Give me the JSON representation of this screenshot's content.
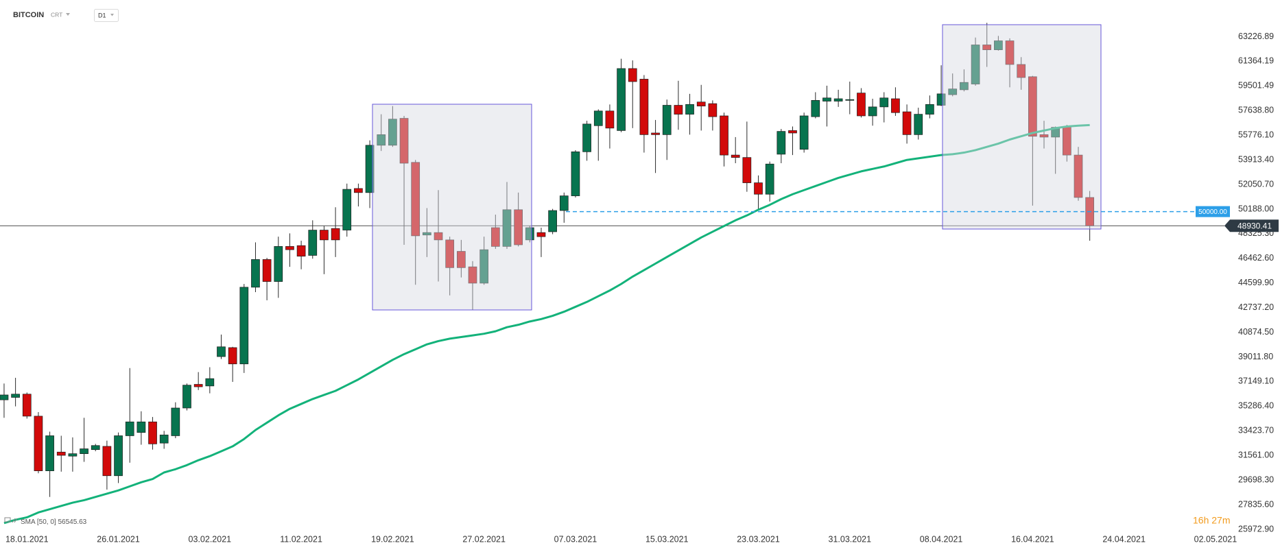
{
  "chart_data": {
    "type": "candlestick",
    "symbol": "BITCOIN",
    "instrument_type": "CRT",
    "interval": "D1",
    "categories": [
      null,
      null,
      "18.01.2021",
      null,
      null,
      null,
      null,
      null,
      null,
      null,
      "26.01.2021",
      null,
      null,
      null,
      null,
      null,
      null,
      null,
      "03.02.2021",
      null,
      null,
      null,
      null,
      null,
      null,
      null,
      "11.02.2021",
      null,
      null,
      null,
      null,
      null,
      null,
      null,
      "19.02.2021",
      null,
      null,
      null,
      null,
      null,
      null,
      null,
      "27.02.2021",
      null,
      null,
      null,
      null,
      null,
      null,
      null,
      "07.03.2021",
      null,
      null,
      null,
      null,
      null,
      null,
      null,
      "15.03.2021",
      null,
      null,
      null,
      null,
      null,
      null,
      null,
      "23.03.2021",
      null,
      null,
      null,
      null,
      null,
      null,
      null,
      "31.03.2021",
      null,
      null,
      null,
      null,
      null,
      null,
      null,
      "08.04.2021",
      null,
      null,
      null,
      null,
      null,
      null,
      null,
      "16.04.2021",
      null,
      null,
      null,
      null,
      null,
      null,
      null,
      "24.04.2021",
      null,
      null,
      null,
      null,
      null,
      null,
      null,
      "02.05.2021"
    ],
    "open": [
      35767,
      35952,
      36199,
      34533,
      30399,
      31818,
      31510,
      31695,
      32003,
      32250,
      30029,
      33052,
      33299,
      34101,
      32497,
      33052,
      35150,
      36939,
      36816,
      39037,
      39716,
      38482,
      44282,
      46379,
      44713,
      47367,
      47428,
      46688,
      48601,
      48724,
      48601,
      51747,
      51439,
      55017,
      55017,
      57053,
      53722,
      48230,
      48415,
      47860,
      46996,
      45824,
      44590,
      48786,
      47367,
      50143,
      47860,
      48415,
      48477,
      50081,
      51192,
      54524,
      56498,
      57609,
      56128,
      60817,
      60015,
      55943,
      55819,
      58041,
      57362,
      58287,
      58164,
      57239,
      54277,
      54092,
      52179,
      51315,
      54339,
      56128,
      54709,
      57177,
      58349,
      58349,
      58411,
      58966,
      57239,
      57917,
      58534,
      57547,
      55819,
      57362,
      58041,
      58843,
      59213,
      59645,
      62606,
      62236,
      62915,
      61126,
      60200,
      55819,
      55634,
      56436,
      54277,
      51069,
      null,
      null,
      null,
      null,
      null,
      null,
      null,
      null,
      null,
      null,
      null
    ],
    "high": [
      37001,
      37433,
      36322,
      34841,
      33361,
      33052,
      32929,
      34410,
      32435,
      32682,
      33299,
      38173,
      34903,
      34471,
      33422,
      35582,
      37001,
      37865,
      38235,
      40703,
      39777,
      44528,
      47675,
      46503,
      48107,
      48354,
      47798,
      49341,
      48909,
      50328,
      52117,
      52117,
      55388,
      57362,
      57979,
      57239,
      53907,
      50266,
      51624,
      48107,
      47860,
      46256,
      48107,
      49773,
      52241,
      51439,
      48909,
      48786,
      50205,
      51439,
      54647,
      56868,
      57732,
      58102,
      61558,
      61434,
      60324,
      56930,
      58473,
      59892,
      58904,
      59583,
      58411,
      57485,
      55634,
      56807,
      52734,
      53783,
      56251,
      56436,
      57485,
      59028,
      59521,
      59213,
      59830,
      59336,
      58534,
      59028,
      59398,
      58102,
      57856,
      58781,
      61064,
      60447,
      60755,
      63162,
      64272,
      63285,
      63100,
      61681,
      60262,
      56868,
      56436,
      56560,
      54894,
      51562,
      null,
      null,
      null,
      null,
      null,
      null,
      null,
      null,
      null,
      null,
      null
    ],
    "low": [
      34410,
      35273,
      34348,
      30214,
      28425,
      30337,
      30337,
      31078,
      31880,
      28980,
      29474,
      31016,
      32373,
      32003,
      32065,
      32867,
      34965,
      36507,
      36261,
      38852,
      37124,
      37803,
      43911,
      43294,
      43479,
      45824,
      45639,
      46441,
      45269,
      46564,
      48107,
      50390,
      50266,
      54585,
      54894,
      47490,
      44467,
      46564,
      44713,
      43665,
      45022,
      42554,
      44467,
      47181,
      47181,
      47367,
      47675,
      46564,
      48292,
      49156,
      51069,
      53845,
      53845,
      54771,
      56005,
      56313,
      54462,
      52920,
      53907,
      56190,
      55819,
      56128,
      56128,
      53413,
      53660,
      51500,
      50081,
      50760,
      53660,
      54277,
      54462,
      57053,
      56436,
      57917,
      57362,
      57115,
      56498,
      56745,
      57239,
      55141,
      55449,
      57053,
      57979,
      58719,
      59090,
      59521,
      60941,
      62175,
      59398,
      59213,
      50452,
      54771,
      52858,
      53783,
      50822,
      47798,
      null,
      null,
      null,
      null,
      null,
      null,
      null,
      null,
      null,
      null,
      null
    ],
    "close": [
      36137,
      36199,
      34533,
      30399,
      33052,
      31571,
      31695,
      32065,
      32312,
      30029,
      33052,
      34101,
      34101,
      32435,
      33114,
      35150,
      36878,
      36754,
      37371,
      39777,
      38482,
      44282,
      46379,
      44713,
      47367,
      47120,
      46626,
      48601,
      47860,
      47860,
      51686,
      51439,
      55017,
      55819,
      56992,
      53660,
      48169,
      48415,
      47860,
      45762,
      45762,
      44590,
      47120,
      47367,
      50143,
      47490,
      48786,
      48107,
      50081,
      51192,
      54524,
      56622,
      57609,
      56313,
      60817,
      59830,
      55819,
      55819,
      58041,
      57362,
      58102,
      57979,
      57177,
      54277,
      54092,
      52179,
      51315,
      53598,
      56066,
      55943,
      57239,
      58411,
      58596,
      58534,
      58473,
      57239,
      57917,
      58596,
      57485,
      55819,
      57362,
      58102,
      58904,
      59275,
      59768,
      62606,
      62236,
      62915,
      61126,
      60138,
      55696,
      55634,
      56375,
      54277,
      51069,
      48930.41,
      null,
      null,
      null,
      null,
      null,
      null,
      null,
      null,
      null,
      null,
      null
    ],
    "up_color": "#08744f",
    "down_color": "#d20a0a",
    "indicators": [
      {
        "name": "SMA [50, 0]",
        "color": "#13b27a",
        "values": [
          26450,
          26697,
          26882,
          27252,
          27499,
          27746,
          27993,
          28178,
          28425,
          28671,
          28918,
          29227,
          29535,
          29782,
          30276,
          30522,
          30831,
          31201,
          31510,
          31880,
          32250,
          32805,
          33484,
          34039,
          34595,
          35088,
          35458,
          35829,
          36137,
          36446,
          36878,
          37309,
          37803,
          38297,
          38790,
          39222,
          39592,
          39963,
          40209,
          40394,
          40518,
          40641,
          40765,
          40950,
          41258,
          41443,
          41690,
          41875,
          42122,
          42431,
          42801,
          43171,
          43603,
          44035,
          44528,
          45084,
          45577,
          46071,
          46564,
          47058,
          47552,
          48045,
          48477,
          48909,
          49341,
          49711,
          50143,
          50513,
          50945,
          51315,
          51624,
          51932,
          52241,
          52549,
          52796,
          53043,
          53228,
          53413,
          53660,
          53907,
          54030,
          54154,
          54277,
          54339,
          54462,
          54647,
          54894,
          55141,
          55449,
          55696,
          55943,
          56128,
          56313,
          56436,
          56498,
          56545.63,
          null,
          null,
          null,
          null,
          null,
          null,
          null,
          null,
          null,
          null,
          null
        ]
      }
    ],
    "hlines": [
      {
        "value": 50000,
        "label": "50000.00",
        "color": "#2c9fe8"
      }
    ],
    "ylim": [
      25895,
      66000
    ],
    "yticks": [
      63226.89,
      61364.19,
      59501.49,
      {
        "value": 57638.8,
        "label": "57638.80"
      },
      {
        "value": 55776.1,
        "label": "55776.10"
      },
      {
        "value": 53913.4,
        "label": "53913.40"
      },
      {
        "value": 52050.7,
        "label": "52050.70"
      },
      {
        "value": 50188,
        "label": "50188.00"
      },
      {
        "value": 48325.3,
        "label": "48325.30"
      },
      {
        "value": 46462.6,
        "label": "46462.60"
      },
      {
        "value": 44599.9,
        "label": "44599.90"
      },
      {
        "value": 42737.2,
        "label": "42737.20"
      },
      {
        "value": 40874.5,
        "label": "40874.50"
      },
      {
        "value": 39011.8,
        "label": "39011.80"
      },
      {
        "value": 37149.1,
        "label": "37149.10"
      },
      {
        "value": 35286.4,
        "label": "35286.40"
      },
      {
        "value": 33423.7,
        "label": "33423.70"
      },
      {
        "value": 31561,
        "label": "31561.00"
      },
      {
        "value": 29698.3,
        "label": "29698.30"
      },
      {
        "value": 27835.6,
        "label": "27835.60"
      },
      {
        "value": 25972.9,
        "label": "25972.90"
      }
    ],
    "grid": false,
    "countdown": "16h 27m"
  }
}
